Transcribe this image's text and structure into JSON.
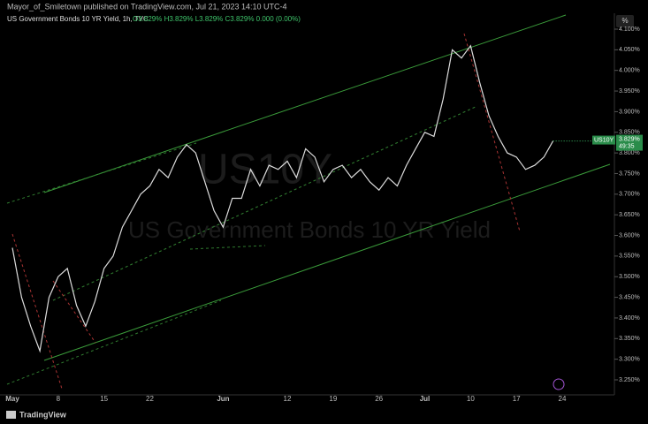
{
  "chart_data": {
    "type": "line",
    "publisher": "Mayor_of_Smiletown published on TradingView.com, Jul 21, 2023 14:10 UTC-4",
    "title": "US Government Bonds 10 YR Yield, 1h, TVC",
    "ohlc": "O3.829% H3.829% L3.829% C3.829% 0.000 (0.00%)",
    "watermark_symbol": "US10Y",
    "watermark_name": "US Government Bonds 10 YR Yield",
    "scale_button": "%",
    "last_price_symbol": "US10Y",
    "last_price_label": "3.829%",
    "countdown": "49:35",
    "footer": "TradingView",
    "categories": [
      "May",
      null,
      null,
      null,
      null,
      "8",
      null,
      null,
      null,
      null,
      "15",
      null,
      null,
      null,
      null,
      "22",
      null,
      null,
      null,
      null,
      null,
      null,
      null,
      "Jun",
      null,
      null,
      null,
      null,
      null,
      null,
      "12",
      null,
      null,
      null,
      null,
      "19",
      null,
      null,
      null,
      null,
      "26",
      null,
      null,
      null,
      null,
      "Jul",
      null,
      null,
      null,
      null,
      "10",
      null,
      null,
      null,
      null,
      "17",
      null,
      null,
      null,
      null,
      "24"
    ],
    "series": [
      {
        "name": "US10Y",
        "color": "#dcdcdc",
        "values": [
          3.57,
          3.45,
          3.38,
          3.32,
          3.45,
          3.5,
          3.52,
          3.43,
          3.38,
          3.44,
          3.52,
          3.55,
          3.62,
          3.66,
          3.7,
          3.72,
          3.76,
          3.74,
          3.79,
          3.82,
          3.8,
          3.73,
          3.66,
          3.62,
          3.69,
          3.69,
          3.76,
          3.72,
          3.77,
          3.76,
          3.78,
          3.74,
          3.81,
          3.79,
          3.73,
          3.76,
          3.77,
          3.74,
          3.76,
          3.73,
          3.71,
          3.74,
          3.72,
          3.77,
          3.81,
          3.85,
          3.84,
          3.93,
          4.05,
          4.03,
          4.06,
          3.97,
          3.89,
          3.84,
          3.8,
          3.79,
          3.76,
          3.77,
          3.79,
          3.829,
          null
        ]
      }
    ],
    "ylim": [
      3.2,
      4.15
    ],
    "yticks": [
      {
        "value": 3.25,
        "label": "3.250%"
      },
      {
        "value": 3.3,
        "label": "3.300%"
      },
      {
        "value": 3.35,
        "label": "3.350%"
      },
      {
        "value": 3.4,
        "label": "3.400%"
      },
      {
        "value": 3.45,
        "label": "3.450%"
      },
      {
        "value": 3.5,
        "label": "3.500%"
      },
      {
        "value": 3.55,
        "label": "3.550%"
      },
      {
        "value": 3.6,
        "label": "3.600%"
      },
      {
        "value": 3.65,
        "label": "3.650%"
      },
      {
        "value": 3.7,
        "label": "3.700%"
      },
      {
        "value": 3.75,
        "label": "3.750%"
      },
      {
        "value": 3.8,
        "label": "3.800%"
      },
      {
        "value": 3.85,
        "label": "3.850%"
      },
      {
        "value": 3.9,
        "label": "3.900%"
      },
      {
        "value": 3.95,
        "label": "3.950%"
      },
      {
        "value": 4.0,
        "label": "4.000%"
      },
      {
        "value": 4.05,
        "label": "4.050%"
      },
      {
        "value": 4.1,
        "label": "4.100%"
      }
    ]
  }
}
